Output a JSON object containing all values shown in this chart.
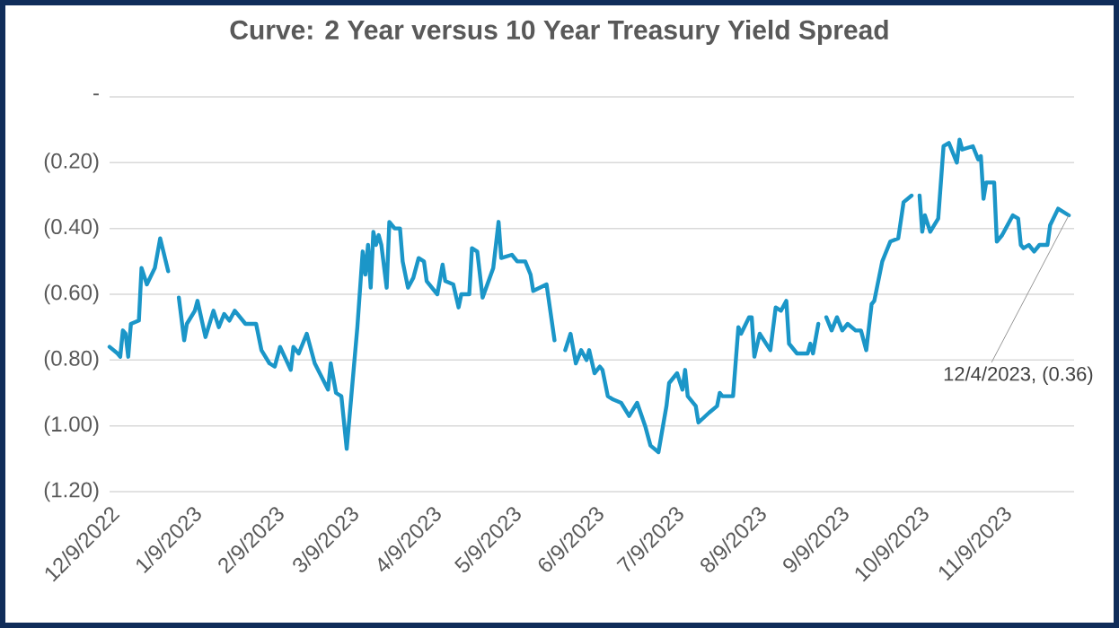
{
  "chart_data": {
    "type": "line",
    "title": "Curve: 2 Year versus 10 Year Treasury Yield Spread",
    "x": [
      "2022-12-09",
      "2022-12-12",
      "2022-12-13",
      "2022-12-14",
      "2022-12-15",
      "2022-12-16",
      "2022-12-17",
      "2022-12-20",
      "2022-12-21",
      "2022-12-23",
      "2022-12-26",
      "2022-12-28",
      "2022-12-31",
      "2023-01-02",
      "2023-01-04",
      "2023-01-06",
      "2023-01-07",
      "2023-01-10",
      "2023-01-11",
      "2023-01-14",
      "2023-01-17",
      "2023-01-19",
      "2023-01-21",
      "2023-01-23",
      "2023-01-25",
      "2023-01-29",
      "2023-02-02",
      "2023-02-04",
      "2023-02-07",
      "2023-02-09",
      "2023-02-11",
      "2023-02-15",
      "2023-02-16",
      "2023-02-18",
      "2023-02-21",
      "2023-02-24",
      "2023-03-01",
      "2023-03-02",
      "2023-03-04",
      "2023-03-06",
      "2023-03-08",
      "2023-03-12",
      "2023-03-14",
      "2023-03-15",
      "2023-03-16",
      "2023-03-17",
      "2023-03-18",
      "2023-03-19",
      "2023-03-20",
      "2023-03-21",
      "2023-03-23",
      "2023-03-24",
      "2023-03-26",
      "2023-03-28",
      "2023-03-29",
      "2023-03-31",
      "2023-04-02",
      "2023-04-04",
      "2023-04-06",
      "2023-04-07",
      "2023-04-11",
      "2023-04-13",
      "2023-04-14",
      "2023-04-17",
      "2023-04-19",
      "2023-04-20",
      "2023-04-23",
      "2023-04-24",
      "2023-04-26",
      "2023-04-28",
      "2023-05-02",
      "2023-05-04",
      "2023-05-05",
      "2023-05-09",
      "2023-05-11",
      "2023-05-14",
      "2023-05-16",
      "2023-05-17",
      "2023-05-22",
      "2023-05-25",
      "2023-05-27",
      "2023-05-29",
      "2023-05-31",
      "2023-06-02",
      "2023-06-04",
      "2023-06-06",
      "2023-06-07",
      "2023-06-09",
      "2023-06-11",
      "2023-06-12",
      "2023-06-14",
      "2023-06-16",
      "2023-06-19",
      "2023-06-22",
      "2023-06-25",
      "2023-06-28",
      "2023-06-30",
      "2023-07-03",
      "2023-07-06",
      "2023-07-07",
      "2023-07-10",
      "2023-07-12",
      "2023-07-13",
      "2023-07-14",
      "2023-07-17",
      "2023-07-18",
      "2023-07-22",
      "2023-07-25",
      "2023-07-26",
      "2023-07-27",
      "2023-07-31",
      "2023-08-02",
      "2023-08-03",
      "2023-08-06",
      "2023-08-07",
      "2023-08-08",
      "2023-08-10",
      "2023-08-14",
      "2023-08-16",
      "2023-08-18",
      "2023-08-20",
      "2023-08-21",
      "2023-08-24",
      "2023-08-28",
      "2023-08-29",
      "2023-08-30",
      "2023-09-01",
      "2023-09-02",
      "2023-09-04",
      "2023-09-06",
      "2023-09-08",
      "2023-09-10",
      "2023-09-12",
      "2023-09-15",
      "2023-09-17",
      "2023-09-19",
      "2023-09-21",
      "2023-09-22",
      "2023-09-25",
      "2023-09-26",
      "2023-09-28",
      "2023-10-01",
      "2023-10-03",
      "2023-10-06",
      "2023-10-07",
      "2023-10-09",
      "2023-10-10",
      "2023-10-11",
      "2023-10-13",
      "2023-10-16",
      "2023-10-18",
      "2023-10-20",
      "2023-10-23",
      "2023-10-24",
      "2023-10-25",
      "2023-10-29",
      "2023-10-31",
      "2023-11-01",
      "2023-11-02",
      "2023-11-03",
      "2023-11-06",
      "2023-11-07",
      "2023-11-09",
      "2023-11-13",
      "2023-11-15",
      "2023-11-16",
      "2023-11-17",
      "2023-11-19",
      "2023-11-21",
      "2023-11-23",
      "2023-11-26",
      "2023-11-27",
      "2023-11-30",
      "2023-12-04"
    ],
    "series": [
      {
        "color": "#1b96c8",
        "values": [
          -0.76,
          -0.78,
          -0.79,
          -0.71,
          -0.72,
          -0.79,
          -0.69,
          -0.68,
          -0.52,
          -0.57,
          -0.52,
          -0.43,
          -0.53,
          null,
          -0.61,
          -0.74,
          -0.69,
          -0.65,
          -0.62,
          -0.73,
          -0.65,
          -0.7,
          -0.66,
          -0.68,
          -0.65,
          -0.69,
          -0.69,
          -0.77,
          -0.81,
          -0.82,
          -0.76,
          -0.83,
          -0.76,
          -0.78,
          -0.72,
          -0.81,
          -0.89,
          -0.81,
          -0.9,
          -0.91,
          -1.07,
          -0.7,
          -0.47,
          -0.54,
          -0.45,
          -0.58,
          -0.41,
          -0.45,
          -0.42,
          -0.45,
          -0.58,
          -0.38,
          -0.4,
          -0.4,
          -0.5,
          -0.58,
          -0.55,
          -0.49,
          -0.5,
          -0.56,
          -0.6,
          -0.51,
          -0.56,
          -0.57,
          -0.64,
          -0.6,
          -0.6,
          -0.46,
          -0.47,
          -0.61,
          -0.52,
          -0.38,
          -0.49,
          -0.48,
          -0.5,
          -0.5,
          -0.54,
          -0.59,
          -0.57,
          -0.74,
          null,
          -0.77,
          -0.72,
          -0.81,
          -0.77,
          -0.8,
          -0.77,
          -0.84,
          -0.82,
          -0.83,
          -0.91,
          -0.92,
          -0.93,
          -0.97,
          -0.93,
          -1.0,
          -1.06,
          -1.08,
          -0.94,
          -0.87,
          -0.84,
          -0.89,
          -0.83,
          -0.91,
          -0.94,
          -0.99,
          -0.96,
          -0.94,
          -0.9,
          -0.91,
          -0.91,
          -0.7,
          -0.72,
          -0.67,
          -0.67,
          -0.79,
          -0.72,
          -0.77,
          -0.64,
          -0.65,
          -0.62,
          -0.75,
          -0.78,
          -0.78,
          -0.75,
          -0.78,
          -0.69,
          null,
          -0.67,
          -0.71,
          -0.67,
          -0.71,
          -0.69,
          -0.71,
          -0.71,
          -0.77,
          -0.63,
          -0.62,
          -0.5,
          -0.48,
          -0.44,
          -0.43,
          -0.32,
          -0.3,
          null,
          -0.3,
          -0.41,
          -0.36,
          -0.41,
          -0.37,
          -0.15,
          -0.14,
          -0.2,
          -0.13,
          -0.16,
          -0.15,
          -0.19,
          -0.18,
          -0.31,
          -0.26,
          -0.26,
          -0.44,
          -0.42,
          -0.36,
          -0.37,
          -0.45,
          -0.46,
          -0.45,
          -0.47,
          -0.45,
          -0.45,
          -0.39,
          -0.34,
          -0.36
        ]
      }
    ],
    "xlim": [
      "2022-12-09",
      "2023-12-06"
    ],
    "xticks": [
      {
        "value": "2022-12-09",
        "label": "12/9/2022"
      },
      {
        "value": "2023-01-09",
        "label": "1/9/2023"
      },
      {
        "value": "2023-02-09",
        "label": "2/9/2023"
      },
      {
        "value": "2023-03-09",
        "label": "3/9/2023"
      },
      {
        "value": "2023-04-09",
        "label": "4/9/2023"
      },
      {
        "value": "2023-05-09",
        "label": "5/9/2023"
      },
      {
        "value": "2023-06-09",
        "label": "6/9/2023"
      },
      {
        "value": "2023-07-09",
        "label": "7/9/2023"
      },
      {
        "value": "2023-08-09",
        "label": "8/9/2023"
      },
      {
        "value": "2023-09-09",
        "label": "9/9/2023"
      },
      {
        "value": "2023-10-09",
        "label": "10/9/2023"
      },
      {
        "value": "2023-11-09",
        "label": "11/9/2023"
      }
    ],
    "ylim": [
      -1.2,
      0
    ],
    "yticks": [
      {
        "value": -1.2,
        "label": "(1.20)"
      },
      {
        "value": -1.0,
        "label": "(1.00)"
      },
      {
        "value": -0.8,
        "label": "(0.80)"
      },
      {
        "value": -0.6,
        "label": "(0.60)"
      },
      {
        "value": -0.4,
        "label": "(0.40)"
      },
      {
        "value": -0.2,
        "label": "(0.20)"
      },
      {
        "value": 0,
        "label": "-"
      }
    ],
    "grid": "y",
    "line_style": "solid",
    "annotations": [
      {
        "text": "12/4/2023,  (0.36)",
        "x": "2023-12-04",
        "y": -0.36
      }
    ]
  }
}
